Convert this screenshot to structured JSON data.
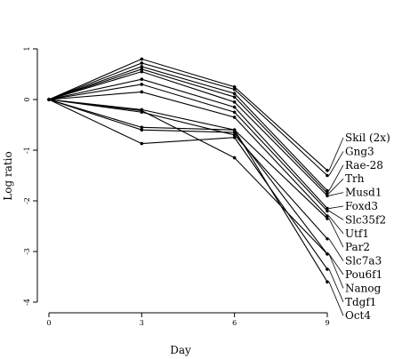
{
  "chart_data": {
    "type": "line",
    "xlabel": "Day",
    "ylabel": "Log ratio",
    "x": [
      0,
      3,
      6,
      9
    ],
    "xticks": [
      "0",
      "3",
      "6",
      "9"
    ],
    "xlim": [
      0,
      9
    ],
    "yticks": [
      "1",
      "0",
      "-1",
      "-2",
      "-3",
      "-4"
    ],
    "ytick_values": [
      1,
      0,
      -1,
      -2,
      -3,
      -4
    ],
    "ylim": [
      -4,
      1
    ],
    "grid": false,
    "line_color": "#000000",
    "series": [
      {
        "name": "Skil (2x)",
        "values": [
          0,
          0.8,
          0.25,
          -1.4
        ]
      },
      {
        "name": "Gng3",
        "values": [
          0,
          0.72,
          0.2,
          -1.5
        ]
      },
      {
        "name": "Rae-28",
        "values": [
          0,
          0.65,
          0.12,
          -1.8
        ]
      },
      {
        "name": "Trh",
        "values": [
          0,
          0.6,
          0.05,
          -1.85
        ]
      },
      {
        "name": "Musd1",
        "values": [
          0,
          0.55,
          -0.05,
          -1.9
        ]
      },
      {
        "name": "Foxd3",
        "values": [
          0,
          0.4,
          -0.15,
          -2.15
        ]
      },
      {
        "name": "Slc35f2",
        "values": [
          0,
          0.3,
          -0.25,
          -2.2
        ]
      },
      {
        "name": "Utf1",
        "values": [
          0,
          0.15,
          -0.35,
          -2.3
        ]
      },
      {
        "name": "Par2",
        "values": [
          0,
          -0.2,
          -0.6,
          -2.35
        ]
      },
      {
        "name": "Slc7a3",
        "values": [
          0,
          -0.25,
          -0.7,
          -2.75
        ]
      },
      {
        "name": "Pou6f1",
        "values": [
          0,
          -0.6,
          -0.65,
          -3.05
        ]
      },
      {
        "name": "Nanog",
        "values": [
          0,
          -0.22,
          -1.15,
          -3.05
        ]
      },
      {
        "name": "Tdgf1",
        "values": [
          0,
          -0.87,
          -0.75,
          -3.35
        ]
      },
      {
        "name": "Oct4",
        "values": [
          0,
          -0.55,
          -0.6,
          -3.6
        ]
      }
    ]
  }
}
